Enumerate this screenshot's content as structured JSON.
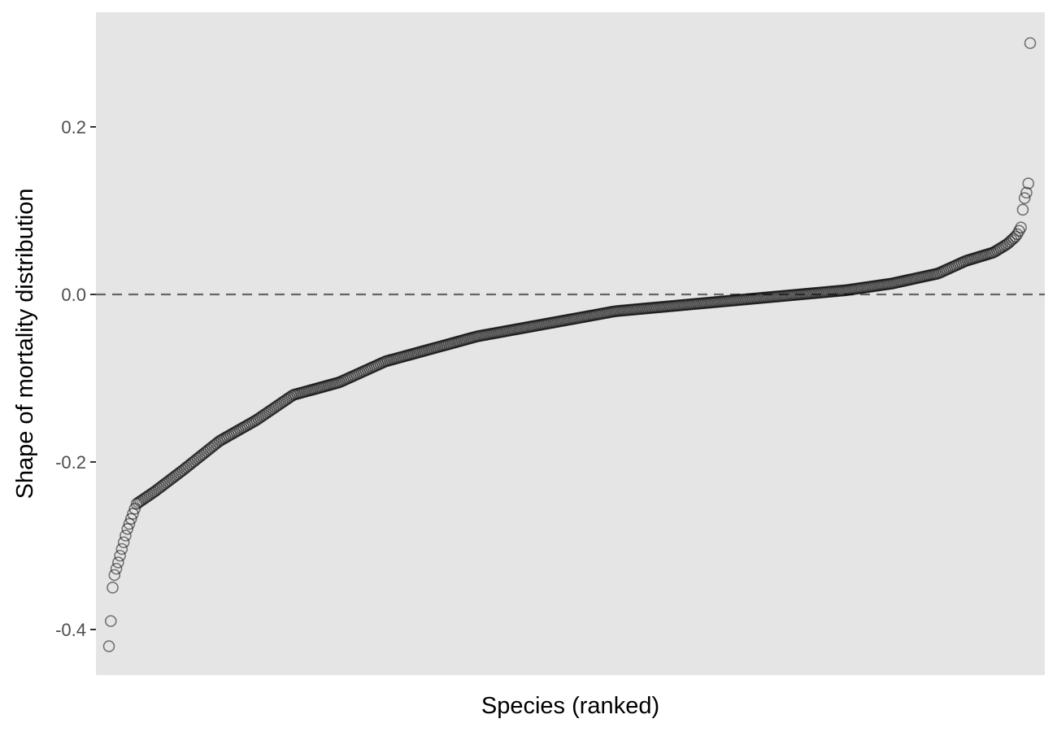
{
  "chart_data": {
    "type": "scatter",
    "title": "",
    "xlabel": "Species (ranked)",
    "ylabel": "Shape of mortality distribution",
    "ylim": [
      -0.45,
      0.345
    ],
    "y_ticks": [
      -0.4,
      -0.2,
      0.0,
      0.2
    ],
    "y_tick_labels": [
      "-0.4",
      "-0.2",
      "0.0",
      "0.2"
    ],
    "x_ticks": [],
    "reference_line": {
      "y": 0.0,
      "style": "dashed"
    },
    "grid": false,
    "legend": "none",
    "colors": {
      "panel_background": "#e5e5e5",
      "point_stroke": "#000000",
      "reference_line": "#666666"
    },
    "n_points": 500,
    "profile": [
      [
        0.0,
        -0.42
      ],
      [
        0.002,
        -0.39
      ],
      [
        0.004,
        -0.35
      ],
      [
        0.006,
        -0.335
      ],
      [
        0.01,
        -0.32
      ],
      [
        0.015,
        -0.3
      ],
      [
        0.02,
        -0.28
      ],
      [
        0.03,
        -0.25
      ],
      [
        0.05,
        -0.235
      ],
      [
        0.08,
        -0.21
      ],
      [
        0.12,
        -0.175
      ],
      [
        0.16,
        -0.15
      ],
      [
        0.2,
        -0.12
      ],
      [
        0.25,
        -0.105
      ],
      [
        0.3,
        -0.08
      ],
      [
        0.35,
        -0.065
      ],
      [
        0.4,
        -0.05
      ],
      [
        0.45,
        -0.04
      ],
      [
        0.5,
        -0.03
      ],
      [
        0.55,
        -0.02
      ],
      [
        0.6,
        -0.015
      ],
      [
        0.65,
        -0.01
      ],
      [
        0.7,
        -0.005
      ],
      [
        0.75,
        0.0
      ],
      [
        0.8,
        0.005
      ],
      [
        0.85,
        0.013
      ],
      [
        0.9,
        0.025
      ],
      [
        0.93,
        0.04
      ],
      [
        0.96,
        0.05
      ],
      [
        0.975,
        0.06
      ],
      [
        0.985,
        0.07
      ],
      [
        0.99,
        0.08
      ],
      [
        0.993,
        0.112
      ],
      [
        0.995,
        0.118
      ],
      [
        0.997,
        0.125
      ],
      [
        0.999,
        0.14
      ],
      [
        1.0,
        0.3
      ]
    ]
  }
}
